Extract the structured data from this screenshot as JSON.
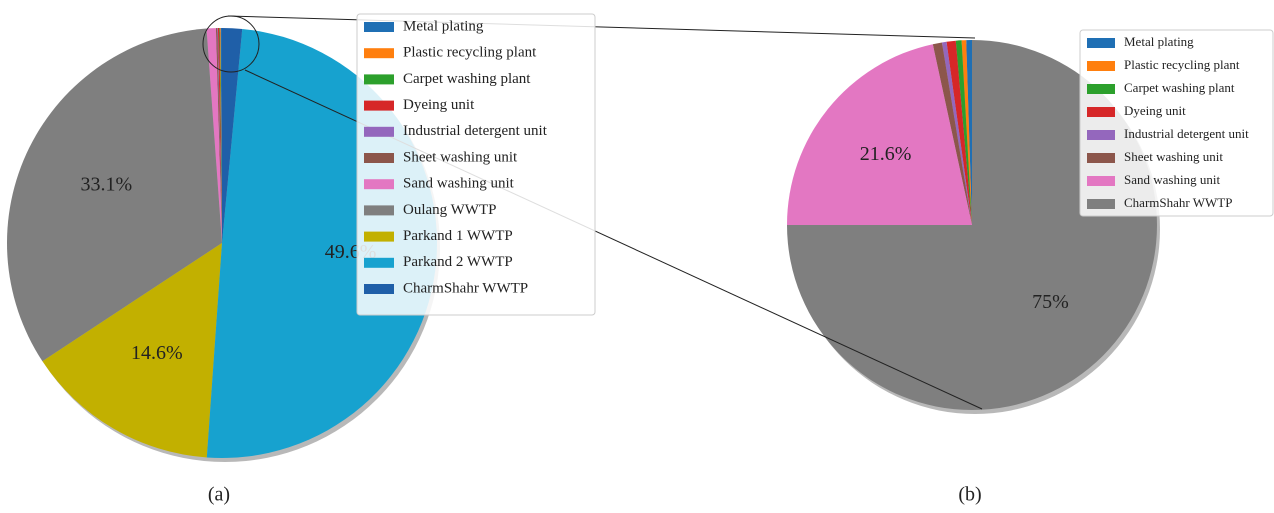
{
  "chart_data": [
    {
      "type": "pie",
      "caption": "(a)",
      "categories": [
        "Metal plating",
        "Plastic recycling plant",
        "Carpet washing plant",
        "Dyeing unit",
        "Industrial detergent unit",
        "Sheet washing unit",
        "Sand washing unit",
        "Oulang WWTP",
        "Parkand 1 WWTP",
        "Parkand 2 WWTP",
        "CharmShahr WWTP"
      ],
      "values": [
        0.1,
        0.05,
        0.05,
        0.1,
        0.05,
        0.1,
        0.7,
        33.1,
        14.6,
        49.6,
        1.5
      ],
      "value_labels": [
        null,
        null,
        null,
        null,
        null,
        null,
        null,
        "33.1%",
        "14.6%",
        "49.6%",
        null
      ],
      "colors": [
        "#1f6fb4",
        "#ff7f0e",
        "#2ca02c",
        "#d62728",
        "#9467bd",
        "#8c564b",
        "#e377c2",
        "#7f7f7f",
        "#c2b000",
        "#17a2cf",
        "#1f5fa8"
      ],
      "legend": "upper right"
    },
    {
      "type": "pie",
      "caption": "(b)",
      "categories": [
        "Metal plating",
        "Plastic recycling plant",
        "Carpet washing plant",
        "Dyeing unit",
        "Industrial detergent unit",
        "Sheet washing unit",
        "Sand washing unit",
        "CharmShahr WWTP"
      ],
      "values": [
        0.5,
        0.4,
        0.5,
        0.8,
        0.4,
        0.8,
        21.6,
        75
      ],
      "value_labels": [
        null,
        null,
        null,
        null,
        null,
        null,
        "21.6%",
        "75%"
      ],
      "colors": [
        "#1f6fb4",
        "#ff7f0e",
        "#2ca02c",
        "#d62728",
        "#9467bd",
        "#8c564b",
        "#e377c2",
        "#7f7f7f"
      ],
      "legend": "upper right"
    }
  ]
}
